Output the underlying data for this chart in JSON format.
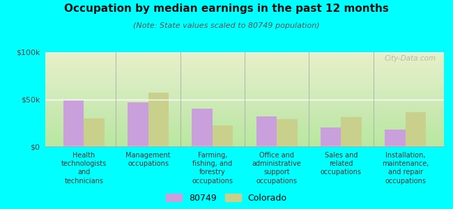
{
  "title": "Occupation by median earnings in the past 12 months",
  "subtitle": "(Note: State values scaled to 80749 population)",
  "categories": [
    "Health\ntechnologists\nand\ntechnicians",
    "Management\noccupations",
    "Farming,\nfishing, and\nforestry\noccupations",
    "Office and\nadministrative\nsupport\noccupations",
    "Sales and\nrelated\noccupations",
    "Installation,\nmaintenance,\nand repair\noccupations"
  ],
  "values_80749": [
    50000,
    47000,
    40000,
    32000,
    20000,
    18000
  ],
  "values_colorado": [
    30000,
    57000,
    22000,
    29000,
    31000,
    36000
  ],
  "bar_color_80749": "#c9a0dc",
  "bar_color_colorado": "#c8d08c",
  "background_color": "#00ffff",
  "ylim": [
    0,
    100000
  ],
  "yticks": [
    0,
    50000,
    100000
  ],
  "ytick_labels": [
    "$0",
    "$50k",
    "$100k"
  ],
  "legend_label_80749": "80749",
  "legend_label_colorado": "Colorado",
  "watermark": "City-Data.com"
}
